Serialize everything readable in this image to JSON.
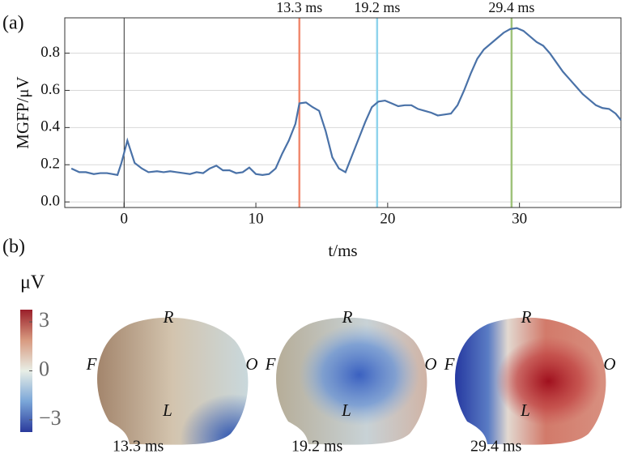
{
  "panel_labels": [
    "(a)",
    "(b)"
  ],
  "chart_data": {
    "type": "line",
    "x_label": "t/ms",
    "y_label": "MGFP/μV",
    "x": [
      -4.0,
      -3.4,
      -2.9,
      -2.3,
      -1.8,
      -1.3,
      -0.9,
      -0.5,
      -0.2,
      0.25,
      0.8,
      1.35,
      1.85,
      2.5,
      3.0,
      3.5,
      4.0,
      4.5,
      5.0,
      5.5,
      6.0,
      6.5,
      7.0,
      7.5,
      8.0,
      8.5,
      9.0,
      9.5,
      10.0,
      10.5,
      11.0,
      11.5,
      12.0,
      12.5,
      13.0,
      13.3,
      13.8,
      14.3,
      14.8,
      15.3,
      15.8,
      16.3,
      16.8,
      17.3,
      17.8,
      18.3,
      18.8,
      19.3,
      19.8,
      20.3,
      20.8,
      21.3,
      21.8,
      22.3,
      22.8,
      23.3,
      23.8,
      24.3,
      24.8,
      25.3,
      25.8,
      26.3,
      26.8,
      27.3,
      27.8,
      28.3,
      28.8,
      29.3,
      29.8,
      30.3,
      30.8,
      31.3,
      31.8,
      32.3,
      32.8,
      33.3,
      33.8,
      34.3,
      34.8,
      35.3,
      35.8,
      36.3,
      36.8,
      37.3,
      37.7
    ],
    "series": [
      {
        "color": "#4a72a8",
        "values": [
          0.18,
          0.16,
          0.16,
          0.15,
          0.155,
          0.155,
          0.15,
          0.145,
          0.21,
          0.33,
          0.21,
          0.18,
          0.16,
          0.165,
          0.16,
          0.165,
          0.16,
          0.155,
          0.15,
          0.16,
          0.155,
          0.18,
          0.195,
          0.17,
          0.17,
          0.155,
          0.16,
          0.185,
          0.15,
          0.145,
          0.15,
          0.18,
          0.26,
          0.33,
          0.42,
          0.53,
          0.535,
          0.51,
          0.49,
          0.38,
          0.24,
          0.18,
          0.16,
          0.25,
          0.34,
          0.43,
          0.51,
          0.54,
          0.545,
          0.53,
          0.515,
          0.52,
          0.52,
          0.5,
          0.49,
          0.48,
          0.465,
          0.47,
          0.475,
          0.52,
          0.6,
          0.69,
          0.77,
          0.82,
          0.85,
          0.88,
          0.91,
          0.93,
          0.935,
          0.92,
          0.89,
          0.86,
          0.84,
          0.8,
          0.75,
          0.7,
          0.66,
          0.62,
          0.58,
          0.55,
          0.52,
          0.505,
          0.5,
          0.475,
          0.44
        ]
      }
    ],
    "markers": [
      {
        "value": 13.3,
        "label": "13.3 ms",
        "color": "#f08a70"
      },
      {
        "value": 19.2,
        "label": "19.2 ms",
        "color": "#8fd4ec"
      },
      {
        "value": 29.4,
        "label": "29.4 ms",
        "color": "#9fc27a"
      }
    ],
    "xlim": [
      -4.5,
      37.7
    ],
    "ylim": [
      -0.03,
      0.99
    ],
    "xticks": [
      0,
      10,
      20,
      30
    ],
    "yticks": [
      {
        "value": 0,
        "label": "0.0"
      },
      0.2,
      0.4,
      0.6,
      0.8
    ],
    "grid": true
  },
  "topography": {
    "unit": "μV",
    "colorbar": {
      "lim": [
        -3.75,
        3.75
      ],
      "ticks": [
        3,
        0,
        {
          "value": -3,
          "label": "−3"
        }
      ]
    },
    "orientation": {
      "front": "F",
      "right": "R",
      "occipital": "O",
      "left": "L"
    }
  }
}
